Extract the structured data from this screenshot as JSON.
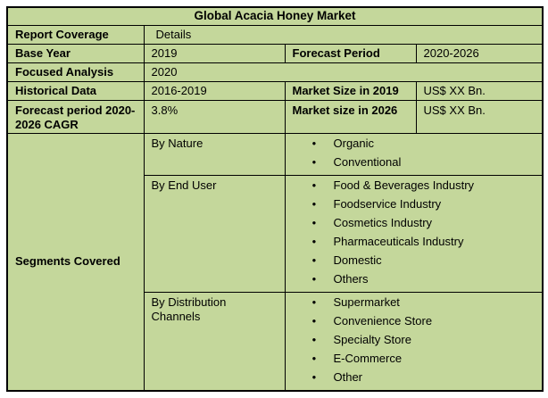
{
  "theme": {
    "table_background": "#c4d79b",
    "border_color": "#000000",
    "page_background": "#ffffff",
    "text_color": "#000000"
  },
  "table": {
    "title": "Global Acacia Honey Market",
    "report_coverage": {
      "label": "Report Coverage",
      "value": "Details"
    },
    "base_year": {
      "label": "Base Year",
      "value": "2019"
    },
    "forecast_period": {
      "label": "Forecast Period",
      "value": "2020-2026"
    },
    "focused_analysis": {
      "label": "Focused Analysis",
      "value": "2020"
    },
    "historical_data": {
      "label": "Historical Data",
      "value": "2016-2019"
    },
    "market_size_2019": {
      "label": "Market Size in 2019",
      "value": "US$ XX Bn."
    },
    "forecast_cagr": {
      "label": "Forecast period 2020-2026 CAGR",
      "value": "3.8%"
    },
    "market_size_2026": {
      "label": "Market size in 2026",
      "value": "US$ XX Bn."
    },
    "segments": {
      "label": "Segments Covered",
      "groups": [
        {
          "name": "By Nature",
          "items": [
            "Organic",
            "Conventional"
          ]
        },
        {
          "name": "By End User",
          "items": [
            "Food & Beverages Industry",
            "Foodservice Industry",
            "Cosmetics Industry",
            "Pharmaceuticals Industry",
            "Domestic",
            "Others"
          ]
        },
        {
          "name": "By Distribution Channels",
          "items": [
            "Supermarket",
            "Convenience Store",
            "Specialty Store",
            "E-Commerce",
            "Other"
          ]
        }
      ]
    }
  }
}
